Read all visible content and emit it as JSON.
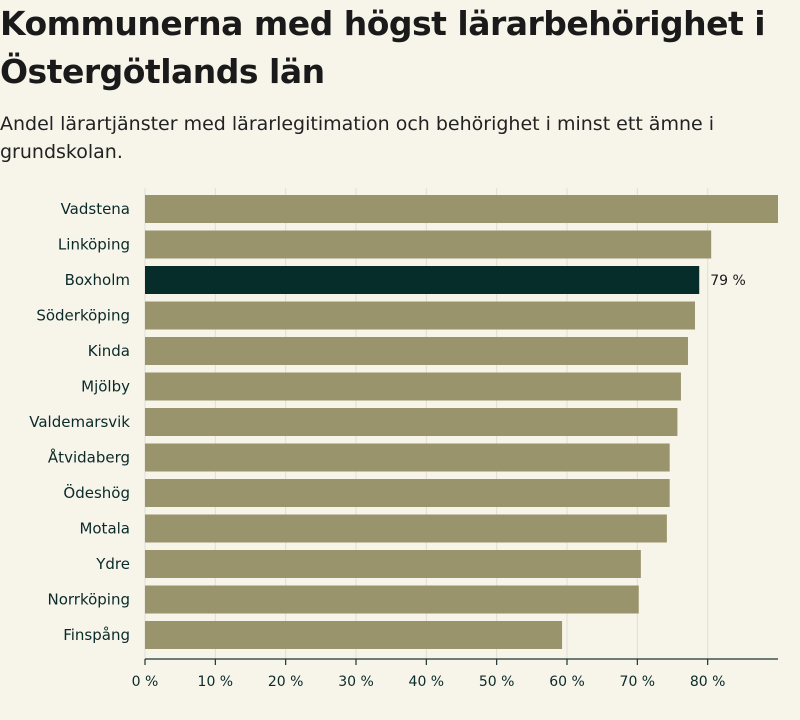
{
  "title": "Kommunerna med högst lärarbehörighet i Östergötlands län",
  "subtitle": "Andel lärartjänster med lärarlegitimation och behörighet i minst ett ämne i grundskolan.",
  "colors": {
    "bar": "#9a946c",
    "highlight": "#072d2b",
    "background": "#f7f4ea"
  },
  "chart_data": {
    "type": "bar",
    "orientation": "horizontal",
    "title": "Kommunerna med högst lärarbehörighet i Östergötlands län",
    "subtitle": "Andel lärartjänster med lärarlegitimation och behörighet i minst ett ämne i grundskolan.",
    "categories": [
      "Vadstena",
      "Linköping",
      "Boxholm",
      "Söderköping",
      "Kinda",
      "Mjölby",
      "Valdemarsvik",
      "Åtvidaberg",
      "Ödeshög",
      "Motala",
      "Ydre",
      "Norrköping",
      "Finspång"
    ],
    "values": [
      90,
      80.5,
      78.8,
      78.2,
      77.2,
      76.2,
      75.7,
      74.6,
      74.6,
      74.2,
      70.5,
      70.2,
      59.3
    ],
    "highlight": "Boxholm",
    "highlight_label": "79 %",
    "xlim": [
      0,
      90
    ],
    "xticks": [
      0,
      10,
      20,
      30,
      40,
      50,
      60,
      70,
      80
    ],
    "xtick_labels": [
      "0 %",
      "10 %",
      "20 %",
      "30 %",
      "40 %",
      "50 %",
      "60 %",
      "70 %",
      "80 %"
    ],
    "grid": true,
    "xlabel": "",
    "ylabel": ""
  }
}
